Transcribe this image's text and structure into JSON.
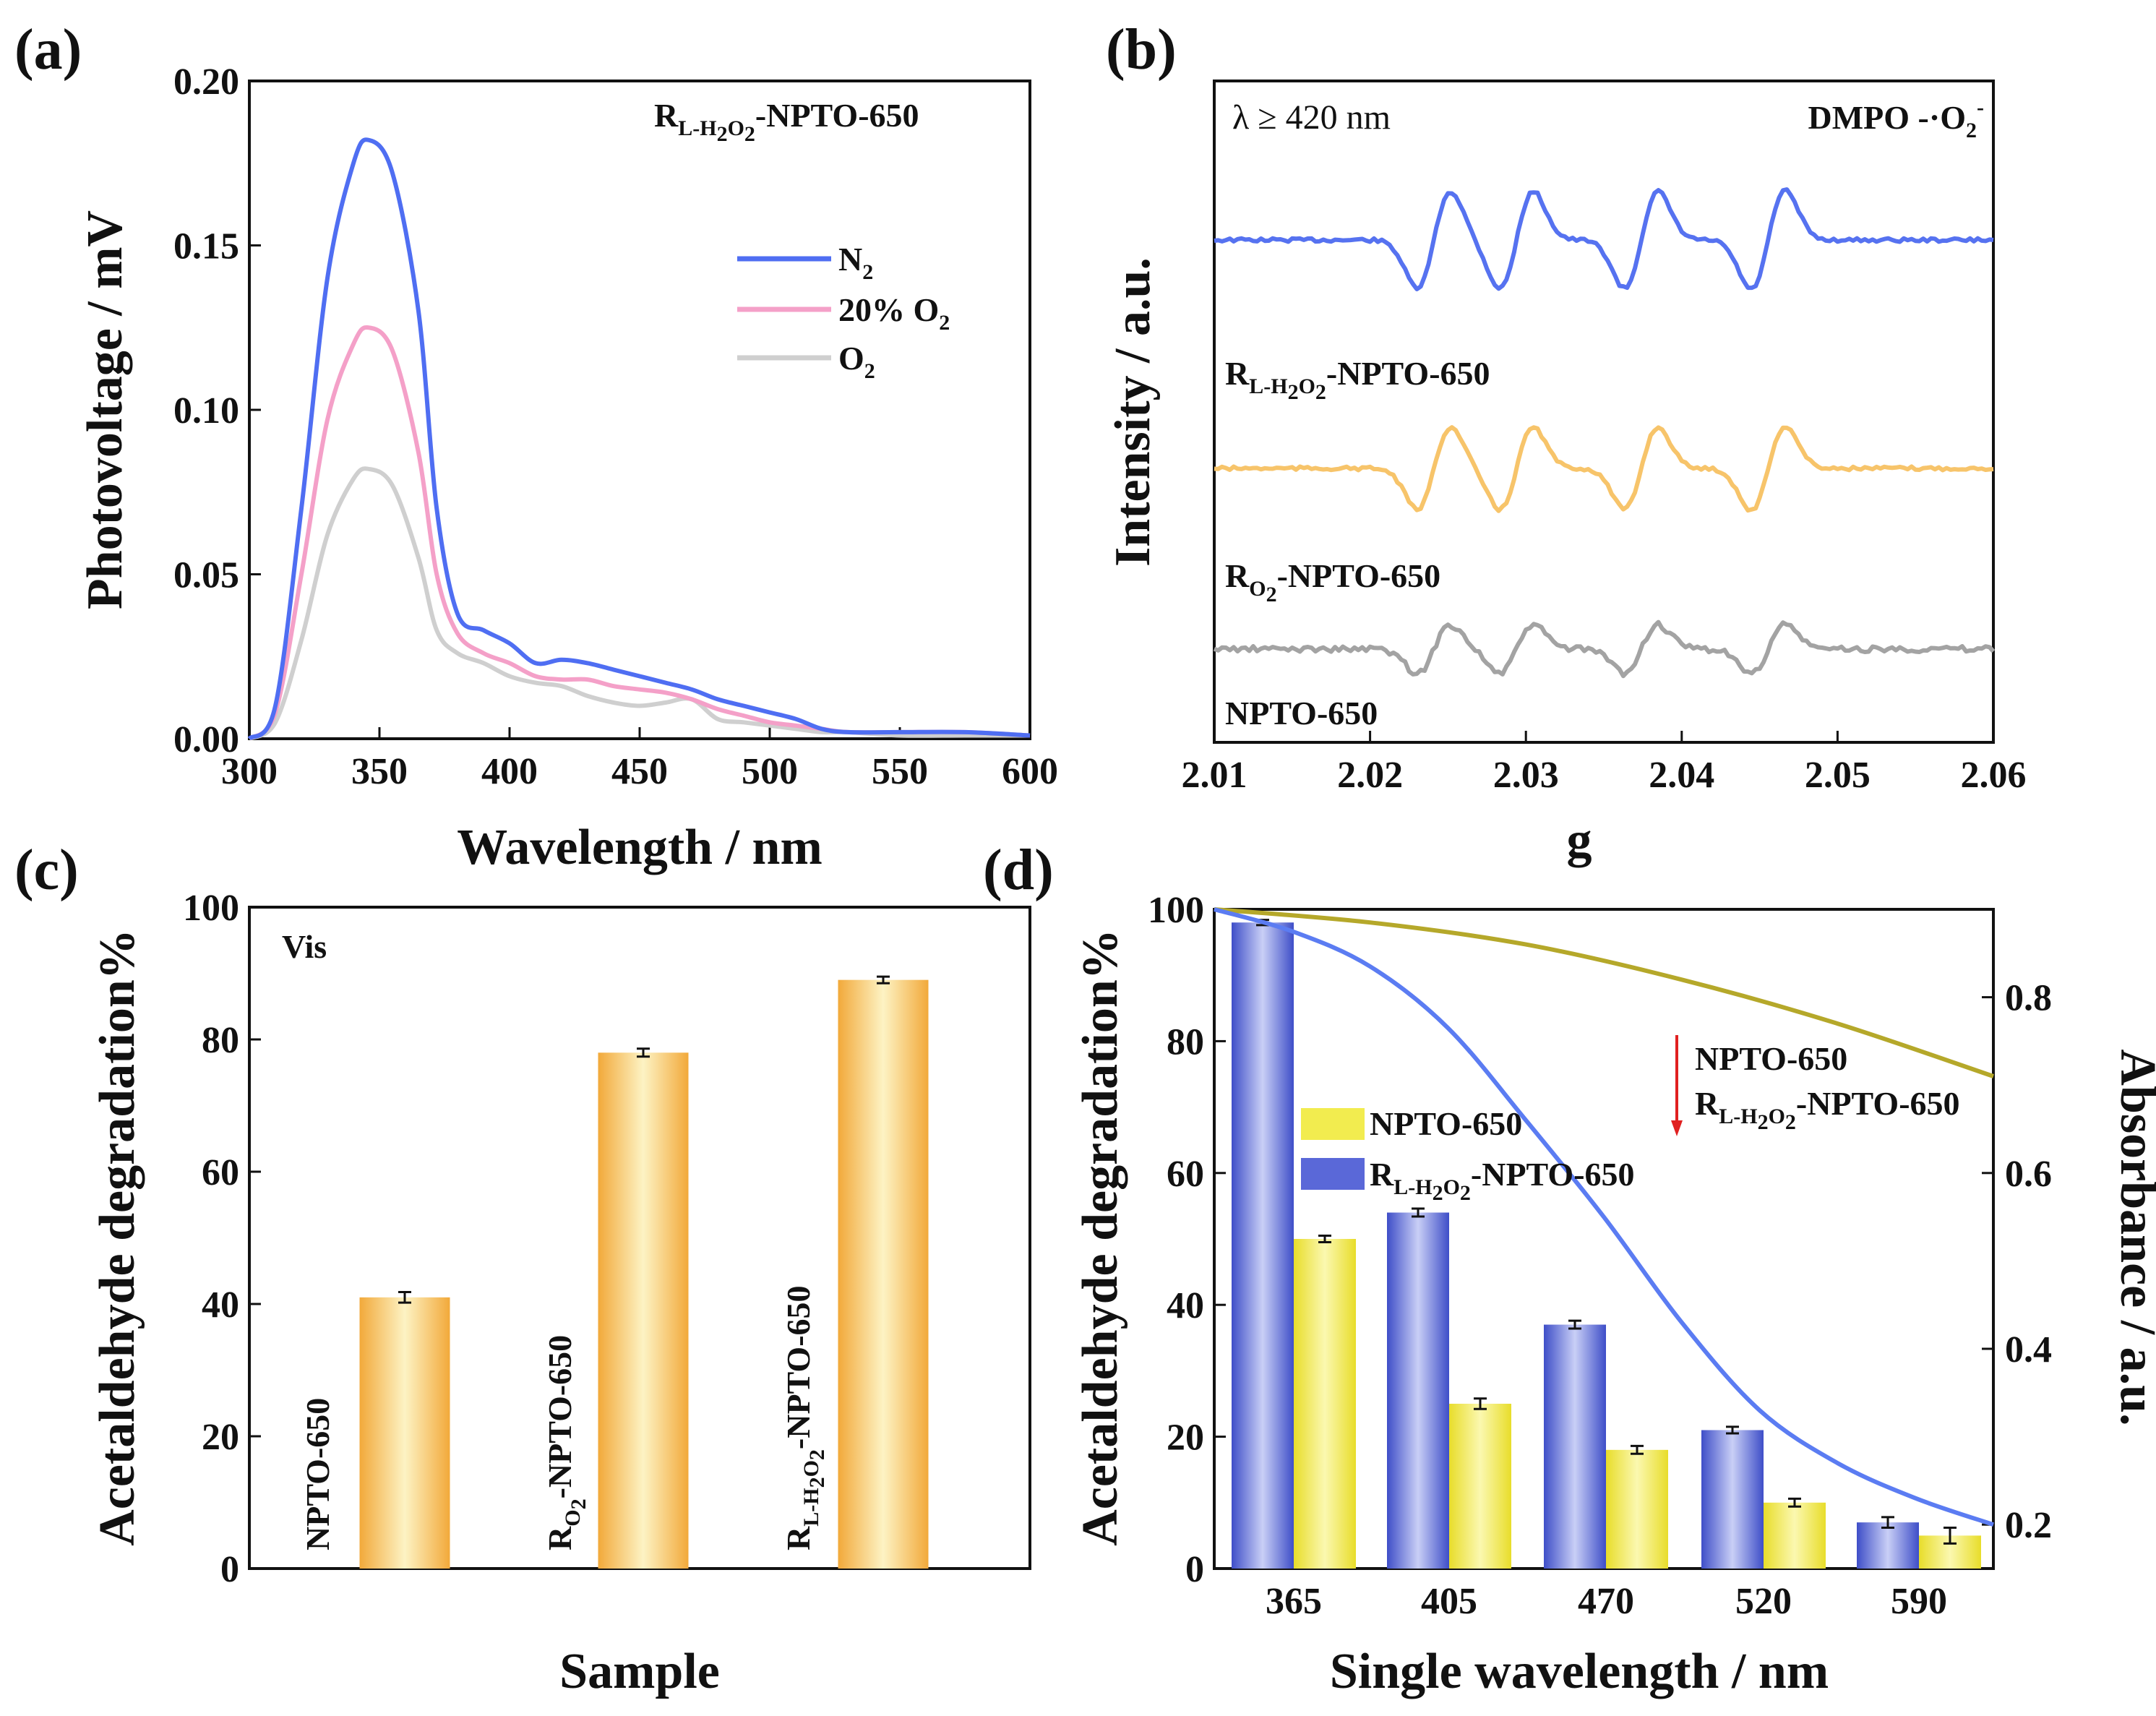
{
  "chart_data": [
    {
      "panel": "(a)",
      "type": "line",
      "xlabel": "Wavelength / nm",
      "ylabel": "Photovoltage / mV",
      "xlim": [
        300,
        600
      ],
      "ylim": [
        0,
        0.2
      ],
      "xticks": [
        300,
        350,
        400,
        450,
        500,
        550,
        600
      ],
      "yticks": [
        "0.00",
        "0.05",
        "0.10",
        "0.15",
        "0.20"
      ],
      "annotation": {
        "main": "R",
        "sub": "L-H",
        "sub2": "2",
        "sub3": "O",
        "sub4": "2",
        "tail": "-NPTO-650"
      },
      "series": [
        {
          "name": "N",
          "name_sub": "2",
          "color": "#4f6ef2",
          "x": [
            300,
            310,
            320,
            330,
            340,
            346,
            355,
            365,
            372,
            380,
            390,
            400,
            410,
            420,
            430,
            440,
            450,
            460,
            470,
            480,
            490,
            500,
            510,
            520,
            530,
            550,
            575,
            600
          ],
          "y": [
            0,
            0.01,
            0.07,
            0.14,
            0.175,
            0.182,
            0.172,
            0.13,
            0.07,
            0.038,
            0.033,
            0.029,
            0.023,
            0.024,
            0.023,
            0.021,
            0.019,
            0.017,
            0.015,
            0.012,
            0.01,
            0.008,
            0.006,
            0.003,
            0.002,
            0.002,
            0.002,
            0.001
          ]
        },
        {
          "name": "20% O",
          "name_sub": "2",
          "color": "#f4a0c8",
          "x": [
            300,
            310,
            320,
            330,
            340,
            346,
            355,
            365,
            372,
            380,
            390,
            400,
            410,
            420,
            430,
            440,
            450,
            460,
            470,
            480,
            490,
            500,
            510,
            520,
            530,
            550,
            575,
            600
          ],
          "y": [
            0,
            0.008,
            0.05,
            0.097,
            0.12,
            0.125,
            0.118,
            0.087,
            0.05,
            0.032,
            0.026,
            0.023,
            0.019,
            0.018,
            0.018,
            0.016,
            0.015,
            0.014,
            0.012,
            0.009,
            0.007,
            0.005,
            0.004,
            0.003,
            0.002,
            0.002,
            0.002,
            0.001
          ]
        },
        {
          "name": "O",
          "name_sub": "2",
          "color": "#cfcfcf",
          "x": [
            300,
            310,
            320,
            330,
            340,
            346,
            355,
            365,
            372,
            380,
            390,
            400,
            410,
            420,
            430,
            440,
            450,
            460,
            470,
            480,
            490,
            500,
            510,
            520,
            530,
            550,
            575,
            600
          ],
          "y": [
            0,
            0.005,
            0.03,
            0.062,
            0.079,
            0.082,
            0.077,
            0.055,
            0.033,
            0.026,
            0.023,
            0.019,
            0.017,
            0.016,
            0.013,
            0.011,
            0.01,
            0.011,
            0.012,
            0.006,
            0.005,
            0.004,
            0.003,
            0.002,
            0.002,
            0.001,
            0.001,
            0.001
          ]
        }
      ]
    },
    {
      "panel": "(b)",
      "type": "line",
      "xlabel": "g",
      "ylabel": "Intensity / a.u.",
      "xlim": [
        2.01,
        2.06
      ],
      "xticks": [
        "2.01",
        "2.02",
        "2.03",
        "2.04",
        "2.05",
        "2.06"
      ],
      "corner_left": "λ ≥ 420 nm",
      "corner_right": "DMPO -·O",
      "corner_right_sub": "2",
      "corner_right_sup": "-",
      "peaks_g": [
        2.0232,
        2.025,
        2.0285,
        2.0303,
        2.0365,
        2.0383,
        2.0446,
        2.0465
      ],
      "series": [
        {
          "name": "R",
          "name_sub": "L-H",
          "tail": "-NPTO-650",
          "color": "#5672f0",
          "amplitude": 1.0
        },
        {
          "name": "R",
          "name_sub": "O",
          "tail": "-NPTO-650",
          "color": "#f7c46a",
          "amplitude": 0.85
        },
        {
          "name": "NPTO-650",
          "color": "#a3a3a3",
          "amplitude": 0.5
        }
      ]
    },
    {
      "panel": "(c)",
      "type": "bar",
      "xlabel": "Sample",
      "ylabel": "Acetaldehyde degradation%",
      "ylim": [
        0,
        100
      ],
      "yticks": [
        0,
        20,
        40,
        60,
        80,
        100
      ],
      "condition": "Vis",
      "categories": [
        "NPTO-650",
        "R-O2-NPTO-650",
        "R-L-H2O2-NPTO-650"
      ],
      "labels": [
        {
          "main": "NPTO-650",
          "sub": "",
          "tail": ""
        },
        {
          "main": "R",
          "sub": "O",
          "tail": "-NPTO-650"
        },
        {
          "main": "R",
          "sub": "L-H",
          "tail": "-NPTO-650"
        }
      ],
      "values": [
        41,
        78,
        89
      ],
      "errors": [
        0.8,
        0.6,
        0.5
      ],
      "color": "#f6c77a"
    },
    {
      "panel": "(d)",
      "type": "bar",
      "xlabel": "Single wavelength / nm",
      "ylabel": "Acetaldehyde degradation%",
      "y2label": "Absorbance / a.u.",
      "ylim": [
        0,
        100
      ],
      "y2lim": [
        0.15,
        0.9
      ],
      "yticks": [
        0,
        20,
        40,
        60,
        80,
        100
      ],
      "y2ticks": [
        "0.2",
        "0.4",
        "0.6",
        "0.8"
      ],
      "categories": [
        "365",
        "405",
        "470",
        "520",
        "590"
      ],
      "series": [
        {
          "name": "NPTO-650",
          "color": "#f2ec4f",
          "values": [
            50,
            25,
            18,
            10,
            5
          ],
          "errors": [
            0.5,
            0.8,
            0.6,
            0.6,
            1.2
          ]
        },
        {
          "name": "R",
          "name_sub": "L-H",
          "tail": "-NPTO-650",
          "color": "#5a68d8",
          "values": [
            98,
            54,
            37,
            21,
            7
          ],
          "errors": [
            0.4,
            0.6,
            0.6,
            0.5,
            0.8
          ]
        }
      ],
      "absorbance": [
        {
          "name": "NPTO-650",
          "color": "#b5a82a",
          "x": [
            0,
            0.2,
            0.4,
            0.6,
            0.8,
            1.0
          ],
          "y": [
            0.9,
            0.885,
            0.86,
            0.82,
            0.77,
            0.71
          ]
        },
        {
          "name": "R-L-H2O2-NPTO-650",
          "color": "#5b7cf2",
          "x": [
            0,
            0.1,
            0.2,
            0.3,
            0.4,
            0.5,
            0.6,
            0.7,
            0.8,
            0.9,
            1.0
          ],
          "y": [
            0.9,
            0.875,
            0.835,
            0.765,
            0.66,
            0.55,
            0.43,
            0.33,
            0.27,
            0.23,
            0.2
          ]
        }
      ],
      "arrow_top": "NPTO-650",
      "arrow_bottom": {
        "main": "R",
        "sub": "L-H",
        "tail": "-NPTO-650"
      }
    }
  ]
}
